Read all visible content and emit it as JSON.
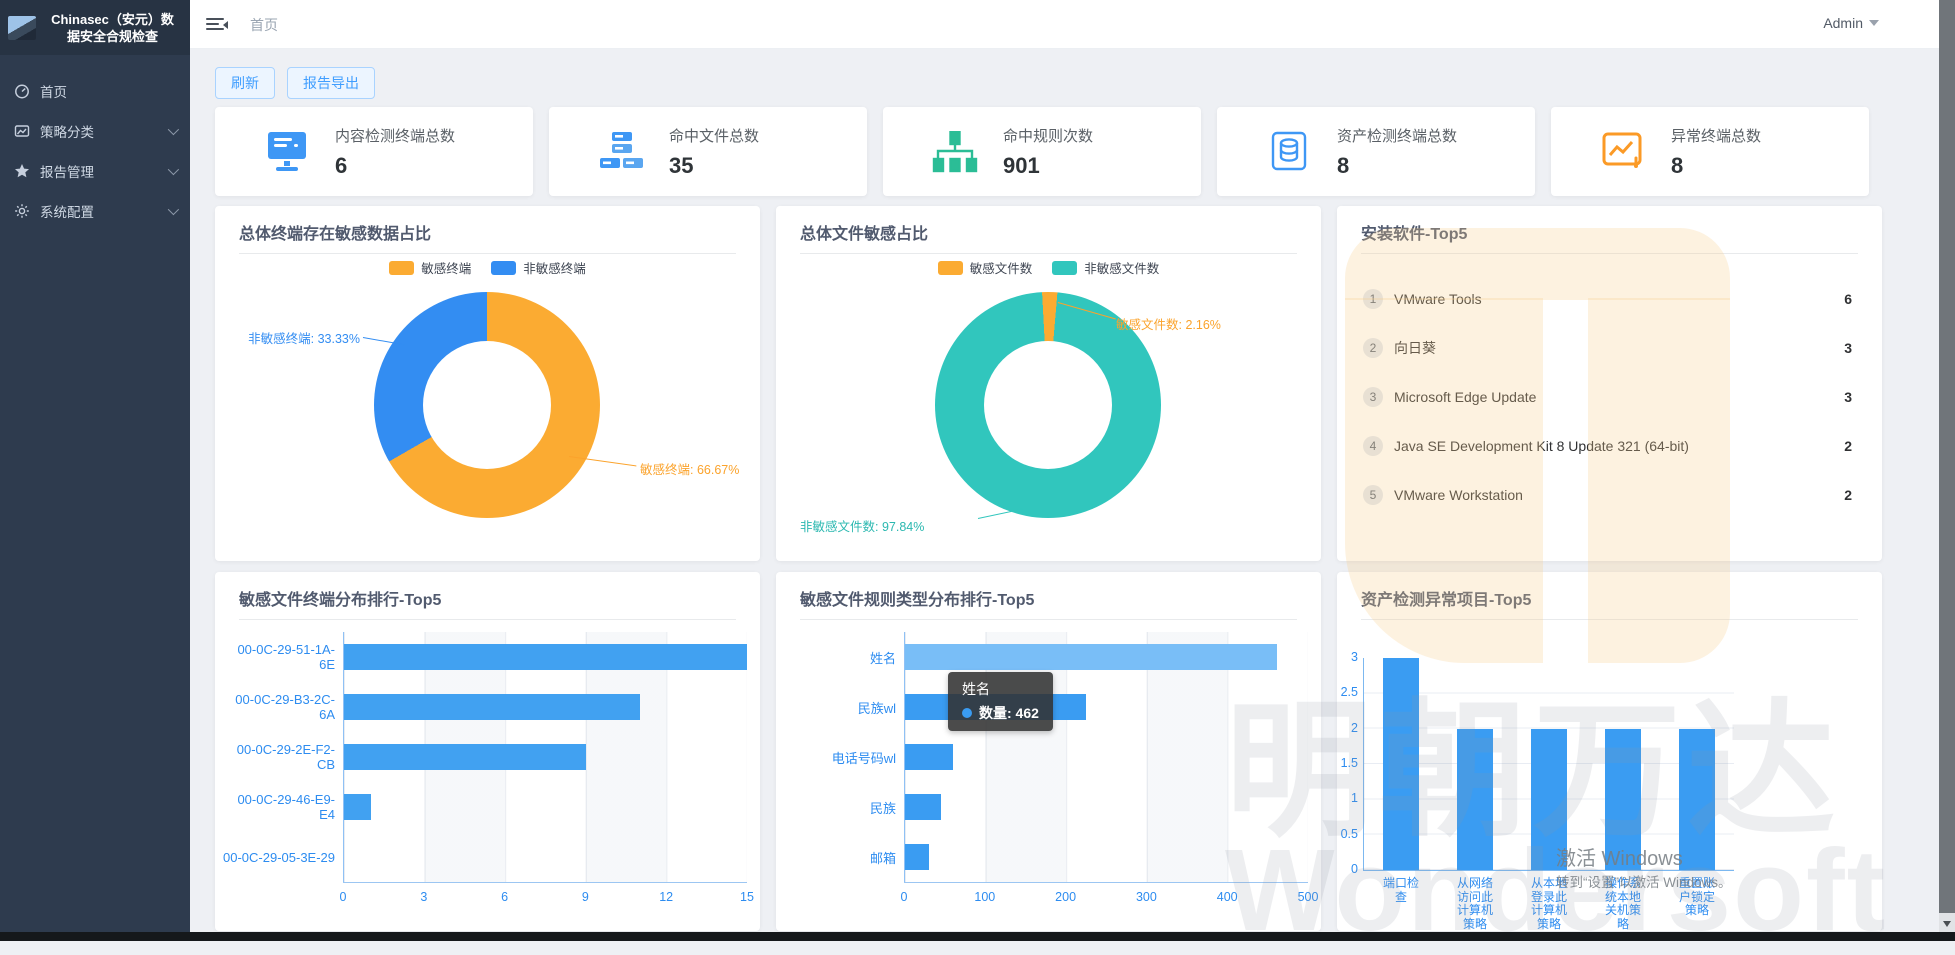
{
  "app": {
    "title_line1": "Chinasec（安元）数",
    "title_line2": "据安全合规检查"
  },
  "topbar": {
    "breadcrumb": "首页",
    "user": "Admin"
  },
  "sidebar": {
    "items": [
      {
        "label": "首页",
        "icon": "dashboard-icon",
        "expandable": false
      },
      {
        "label": "策略分类",
        "icon": "policy-icon",
        "expandable": true
      },
      {
        "label": "报告管理",
        "icon": "star-icon",
        "expandable": true
      },
      {
        "label": "系统配置",
        "icon": "gear-icon",
        "expandable": true
      }
    ]
  },
  "toolbar": {
    "refresh_label": "刷新",
    "export_label": "报告导出"
  },
  "stat_cards": [
    {
      "title": "内容检测终端总数",
      "value": "6",
      "icon": "monitor-icon",
      "color": "#3e97f5"
    },
    {
      "title": "命中文件总数",
      "value": "35",
      "icon": "server-cluster-icon",
      "color": "#3e97f5"
    },
    {
      "title": "命中规则次数",
      "value": "901",
      "icon": "topology-icon",
      "color": "#2bbd96"
    },
    {
      "title": "资产检测终端总数",
      "value": "8",
      "icon": "asset-monitor-icon",
      "color": "#3e97f5"
    },
    {
      "title": "异常终端总数",
      "value": "8",
      "icon": "abnormal-chart-icon",
      "color": "#fb9a26"
    }
  ],
  "panels": {
    "terminal_ratio": {
      "title": "总体终端存在敏感数据占比",
      "callout_left": "非敏感终端: 33.33%",
      "callout_right": "敏感终端: 66.67%"
    },
    "file_ratio": {
      "title": "总体文件敏感占比",
      "callout_top": "敏感文件数: 2.16%",
      "callout_bottom": "非敏感文件数: 97.84%"
    },
    "software": {
      "title": "安装软件-Top5",
      "items": [
        {
          "rank": "1",
          "name": "VMware Tools",
          "count": "6"
        },
        {
          "rank": "2",
          "name": "向日葵",
          "count": "3"
        },
        {
          "rank": "3",
          "name": "Microsoft Edge Update",
          "count": "3"
        },
        {
          "rank": "4",
          "name": "Java SE Development Kit 8 Update 321 (64-bit)",
          "count": "2"
        },
        {
          "rank": "5",
          "name": "VMware Workstation",
          "count": "2"
        }
      ]
    },
    "terminal_top": {
      "title": "敏感文件终端分布排行-Top5"
    },
    "rule_top": {
      "title": "敏感文件规则类型分布排行-Top5",
      "tooltip": {
        "title": "姓名",
        "line": "数量: 462"
      }
    },
    "asset_top": {
      "title": "资产检测异常项目-Top5"
    }
  },
  "chart_data": [
    {
      "type": "pie",
      "donut": true,
      "title": "总体终端存在敏感数据占比",
      "start_angle": 0,
      "legend_position": "top",
      "series": [
        {
          "name": "敏感终端",
          "value": 66.67,
          "color": "#fbab32"
        },
        {
          "name": "非敏感终端",
          "value": 33.33,
          "color": "#338df2"
        }
      ]
    },
    {
      "type": "pie",
      "donut": true,
      "title": "总体文件敏感占比",
      "start_angle": -3,
      "legend_position": "top",
      "series": [
        {
          "name": "敏感文件数",
          "value": 2.16,
          "color": "#fbab32"
        },
        {
          "name": "非敏感文件数",
          "value": 97.84,
          "color": "#31c6bd"
        }
      ]
    },
    {
      "type": "bar",
      "orientation": "horizontal",
      "title": "敏感文件终端分布排行-Top5",
      "categories": [
        "00-0C-29-51-1A-6E",
        "00-0C-29-B3-2C-6A",
        "00-0C-29-2E-F2-CB",
        "00-0C-29-46-E9-E4",
        "00-0C-29-05-3E-29"
      ],
      "values": [
        15,
        11,
        9,
        1,
        0
      ],
      "xticks": [
        0,
        3,
        6,
        9,
        12,
        15
      ],
      "xmax": 15,
      "bar_color": "#41a1f1",
      "grid": true
    },
    {
      "type": "bar",
      "orientation": "horizontal",
      "title": "敏感文件规则类型分布排行-Top5",
      "categories": [
        "姓名",
        "民族wl",
        "电话号码wl",
        "民族",
        "邮箱"
      ],
      "values": [
        462,
        225,
        60,
        45,
        30
      ],
      "xticks": [
        0,
        100,
        200,
        300,
        400,
        500
      ],
      "xmax": 500,
      "bar_colors": [
        "#79bef7",
        "#3a9cf2",
        "#3a9cf2",
        "#3a9cf2",
        "#3a9cf2"
      ],
      "grid": true,
      "tooltip": {
        "category": "姓名",
        "label": "数量",
        "value": 462
      }
    },
    {
      "type": "bar",
      "orientation": "vertical",
      "title": "资产检测异常项目-Top5",
      "categories": [
        "端口检\n查",
        "从网络\n访问此\n计算机\n策略",
        "从本地\n登录此\n计算机\n策略",
        "操作系\n统本地\n关机策\n略",
        "重置账\n户锁定\n策略"
      ],
      "categories_full": [
        "端口检查",
        "从网络访问此计算机策略",
        "从本地登录此计算机策略",
        "操作系统本地关机策略",
        "重置账户锁定策略"
      ],
      "values": [
        3,
        2,
        2,
        2,
        2
      ],
      "yticks": [
        0,
        0.5,
        1,
        1.5,
        2,
        2.5,
        3
      ],
      "ymax": 3,
      "bar_color": "#3a9cf2",
      "grid": true
    }
  ],
  "watermark": {
    "brand_cn": "明朝万达",
    "brand_en": "Wondersoft",
    "activate_line1": "激活 Windows",
    "activate_line2": "转到“设置”以激活 Windows。"
  }
}
